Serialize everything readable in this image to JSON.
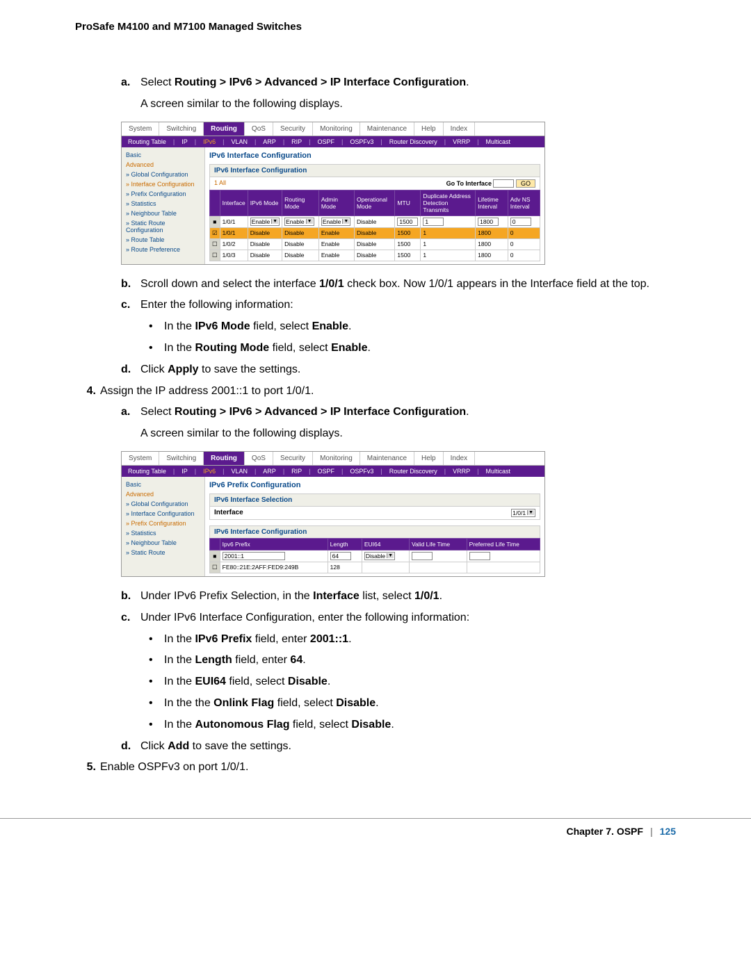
{
  "header": "ProSafe M4100 and M7100 Managed Switches",
  "footer": {
    "chapter": "Chapter 7.  OSPF",
    "page": "125"
  },
  "steps": {
    "a1_label": "a.",
    "a1_pre": "Select ",
    "a1_bold": "Routing > IPv6 > Advanced > IP Interface Configuration",
    "a1_post": ".",
    "a1_sub": "A screen similar to the following displays.",
    "b1_label": "b.",
    "b1_pre": "Scroll down and select the interface ",
    "b1_bold": "1/0/1",
    "b1_post": " check box. Now 1/0/1 appears in the Interface field at the top.",
    "c1_label": "c.",
    "c1_text": "Enter the following information:",
    "bul1_pre": "In the ",
    "bul1_bold": "IPv6 Mode",
    "bul1_mid": " field, select ",
    "bul1_bold2": "Enable",
    "bul1_post": ".",
    "bul2_pre": "In the ",
    "bul2_bold": "Routing Mode",
    "bul2_mid": " field, select ",
    "bul2_bold2": "Enable",
    "bul2_post": ".",
    "d1_label": "d.",
    "d1_pre": "Click ",
    "d1_bold": "Apply",
    "d1_post": " to save the settings.",
    "n4_label": "4.",
    "n4_text": "Assign the IP address 2001::1 to port 1/0/1.",
    "a2_label": "a.",
    "a2_pre": "Select ",
    "a2_bold": "Routing > IPv6 > Advanced > IP Interface Configuration",
    "a2_post": ".",
    "a2_sub": "A screen similar to the following displays.",
    "b2_label": "b.",
    "b2_pre": "Under IPv6 Prefix Selection, in the ",
    "b2_bold": "Interface",
    "b2_mid": " list, select ",
    "b2_bold2": "1/0/1",
    "b2_post": ".",
    "c2_label": "c.",
    "c2_text": "Under IPv6 Interface Configuration, enter the following information:",
    "bul3_pre": "In the ",
    "bul3_bold": "IPv6 Prefix",
    "bul3_mid": " field, enter ",
    "bul3_bold2": "2001::1",
    "bul3_post": ".",
    "bul4_pre": "In the ",
    "bul4_bold": "Length",
    "bul4_mid": " field, enter ",
    "bul4_bold2": "64",
    "bul4_post": ".",
    "bul5_pre": "In the ",
    "bul5_bold": "EUI64",
    "bul5_mid": " field, select ",
    "bul5_bold2": "Disable",
    "bul5_post": ".",
    "bul6_pre": "In the the ",
    "bul6_bold": "Onlink Flag",
    "bul6_mid": " field, select ",
    "bul6_bold2": "Disable",
    "bul6_post": ".",
    "bul7_pre": "In the ",
    "bul7_bold": "Autonomous Flag",
    "bul7_mid": " field, select ",
    "bul7_bold2": "Disable",
    "bul7_post": ".",
    "d2_label": "d.",
    "d2_pre": "Click ",
    "d2_bold": "Add",
    "d2_post": " to save the settings.",
    "n5_label": "5.",
    "n5_text": " Enable OSPFv3 on port 1/0/1."
  },
  "ui1": {
    "tabs": [
      "System",
      "Switching",
      "Routing",
      "QoS",
      "Security",
      "Monitoring",
      "Maintenance",
      "Help",
      "Index"
    ],
    "active_tab": "Routing",
    "subnav": [
      "Routing Table",
      "IP",
      "IPv6",
      "VLAN",
      "ARP",
      "RIP",
      "OSPF",
      "OSPFv3",
      "Router Discovery",
      "VRRP",
      "Multicast"
    ],
    "subnav_active": "IPv6",
    "side": [
      "Basic",
      "Advanced",
      "» Global Configuration",
      "» Interface Configuration",
      "» Prefix Configuration",
      "» Statistics",
      "» Neighbour Table",
      "» Static Route Configuration",
      "» Route Table",
      "» Route Preference"
    ],
    "side_hl": [
      "Advanced",
      "» Interface Configuration"
    ],
    "title": "IPv6 Interface Configuration",
    "section": "IPv6 Interface Configuration",
    "allrow_left": "1  All",
    "allrow_right": "Go To Interface",
    "allrow_go": "GO",
    "cols": [
      "",
      "Interface",
      "IPv6 Mode",
      "Routing Mode",
      "Admin Mode",
      "Operational Mode",
      "MTU",
      "Duplicate Address Detection Transmits",
      "Lifetime Interval",
      "Adv NS Interval"
    ],
    "rows": [
      {
        "chk": "■",
        "if": "1/0/1",
        "ipv6": "Enable",
        "rt": "Enable",
        "admin": "Enable",
        "op": "Disable",
        "mtu": "1500",
        "dad": "1",
        "life": "1800",
        "adv": "0",
        "sel": true
      },
      {
        "chk": "☑",
        "if": "1/0/1",
        "ipv6": "Disable",
        "rt": "Disable",
        "admin": "Enable",
        "op": "Disable",
        "mtu": "1500",
        "dad": "1",
        "life": "1800",
        "adv": "0",
        "hl": true
      },
      {
        "chk": "☐",
        "if": "1/0/2",
        "ipv6": "Disable",
        "rt": "Disable",
        "admin": "Enable",
        "op": "Disable",
        "mtu": "1500",
        "dad": "1",
        "life": "1800",
        "adv": "0"
      },
      {
        "chk": "☐",
        "if": "1/0/3",
        "ipv6": "Disable",
        "rt": "Disable",
        "admin": "Enable",
        "op": "Disable",
        "mtu": "1500",
        "dad": "1",
        "life": "1800",
        "adv": "0"
      }
    ]
  },
  "ui2": {
    "tabs": [
      "System",
      "Switching",
      "Routing",
      "QoS",
      "Security",
      "Monitoring",
      "Maintenance",
      "Help",
      "Index"
    ],
    "active_tab": "Routing",
    "subnav": [
      "Routing Table",
      "IP",
      "IPv6",
      "VLAN",
      "ARP",
      "RIP",
      "OSPF",
      "OSPFv3",
      "Router Discovery",
      "VRRP",
      "Multicast"
    ],
    "subnav_active": "IPv6",
    "side": [
      "Basic",
      "Advanced",
      "» Global Configuration",
      "» Interface Configuration",
      "» Prefix Configuration",
      "» Statistics",
      "» Neighbour Table",
      "» Static Route"
    ],
    "side_hl": [
      "Advanced",
      "» Prefix Configuration"
    ],
    "title": "IPv6 Prefix Configuration",
    "section1": "IPv6 Interface Selection",
    "if_label": "Interface",
    "if_value": "1/0/1",
    "section2": "IPv6 Interface Configuration",
    "cols": [
      "",
      "Ipv6 Prefix",
      "Length",
      "EUI64",
      "Valid Life Time",
      "Preferred Life Time"
    ],
    "rows": [
      {
        "chk": "■",
        "pfx": "2001::1",
        "len": "64",
        "eui": "Disable",
        "vlt": "",
        "plt": "",
        "sel": true
      },
      {
        "chk": "☐",
        "pfx": "FE80::21E:2AFF:FED9:249B",
        "len": "128",
        "eui": "",
        "vlt": "",
        "plt": ""
      }
    ]
  }
}
